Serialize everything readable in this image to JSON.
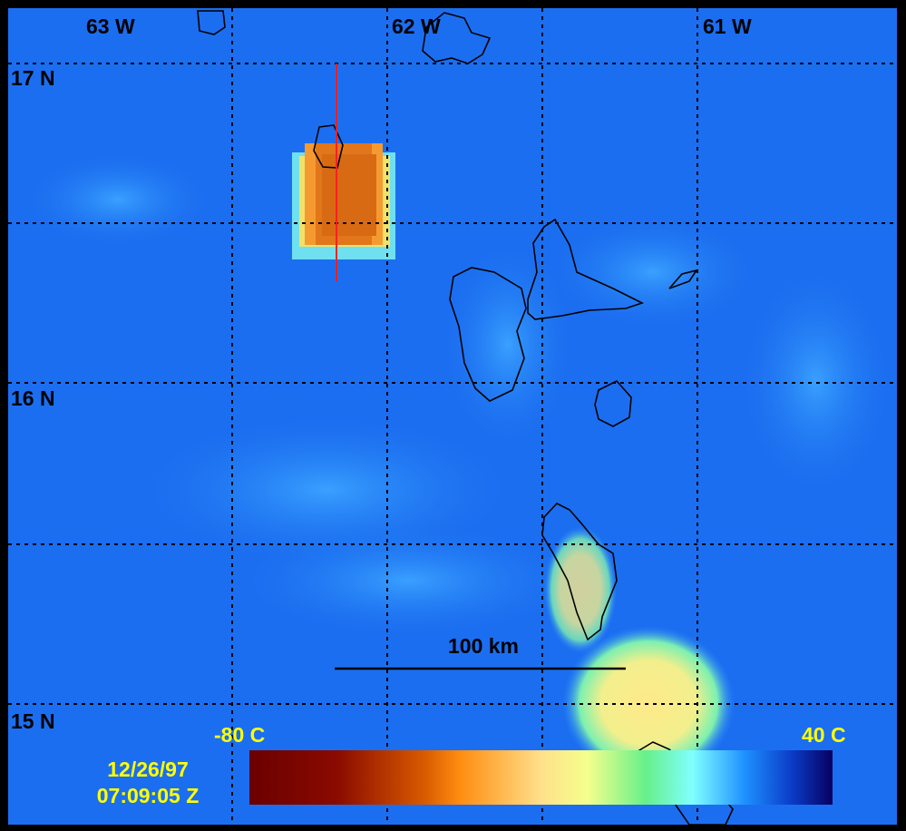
{
  "map": {
    "longitude_labels": [
      "63 W",
      "62 W",
      "61 W"
    ],
    "latitude_labels": [
      "17 N",
      "16 N",
      "15 N"
    ],
    "scale_bar": "100 km",
    "colorbar": {
      "min_label": "-80 C",
      "max_label": "40 C"
    },
    "timestamp": {
      "date": "12/26/97",
      "time": "07:09:05 Z"
    }
  }
}
